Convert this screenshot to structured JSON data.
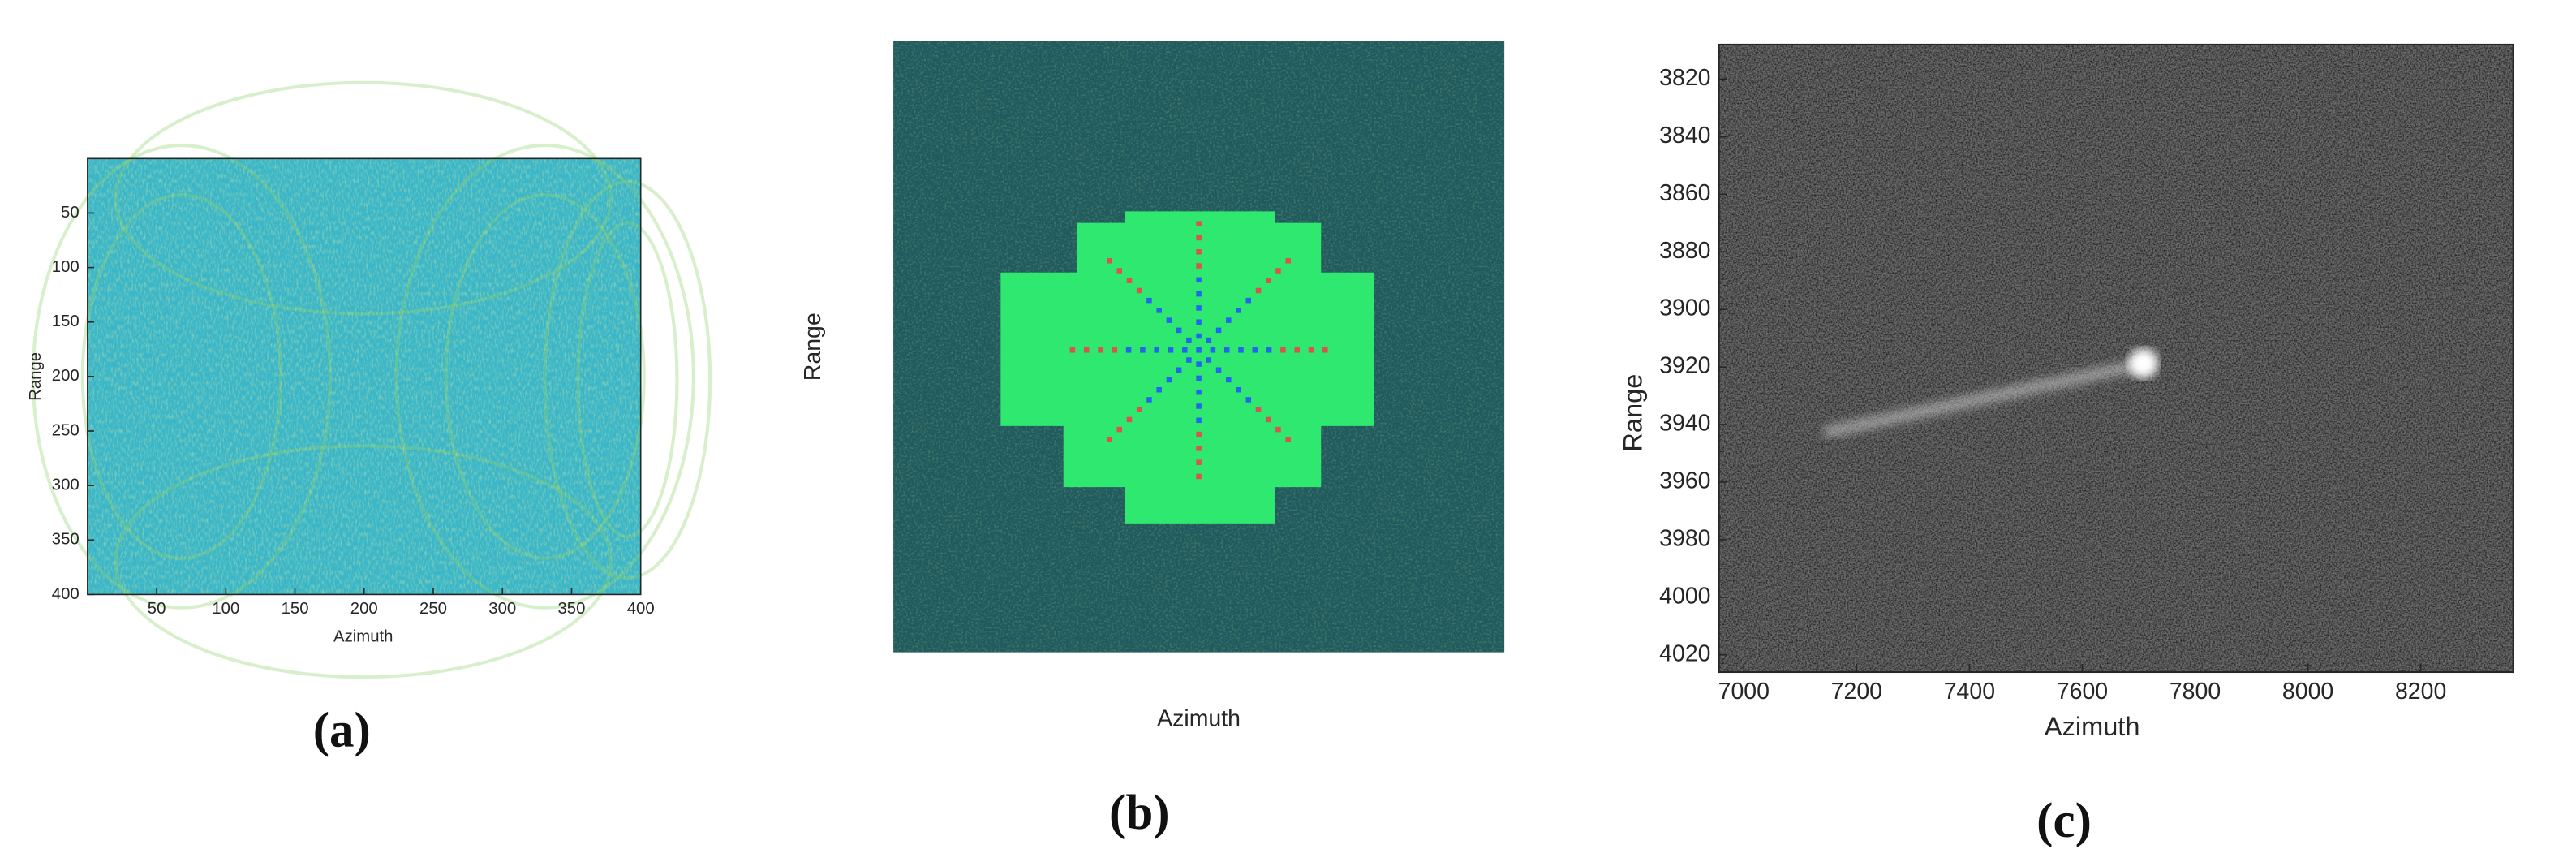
{
  "chart_data": [
    {
      "type": "image",
      "caption": "(a)",
      "xlabel": "Azimuth",
      "ylabel": "Range",
      "xlim": [
        0,
        400
      ],
      "ylim": [
        0,
        400
      ],
      "y_reversed": true,
      "xticks": [
        50,
        100,
        150,
        200,
        250,
        300,
        350,
        400
      ],
      "yticks": [
        50,
        100,
        150,
        200,
        250,
        300,
        350,
        400
      ]
    },
    {
      "type": "image",
      "caption": "(b)",
      "xlabel": "Azimuth",
      "ylabel": "Range"
    },
    {
      "type": "image",
      "caption": "(c)",
      "xlabel": "Azimuth",
      "ylabel": "Range",
      "xlim": [
        6956,
        8364
      ],
      "ylim": [
        3808,
        4026
      ],
      "y_reversed": true,
      "xticks": [
        7000,
        7200,
        7400,
        7600,
        7800,
        8000,
        8200
      ],
      "yticks": [
        3820,
        3840,
        3860,
        3880,
        3900,
        3920,
        3940,
        3960,
        3980,
        4000,
        4020
      ]
    }
  ]
}
